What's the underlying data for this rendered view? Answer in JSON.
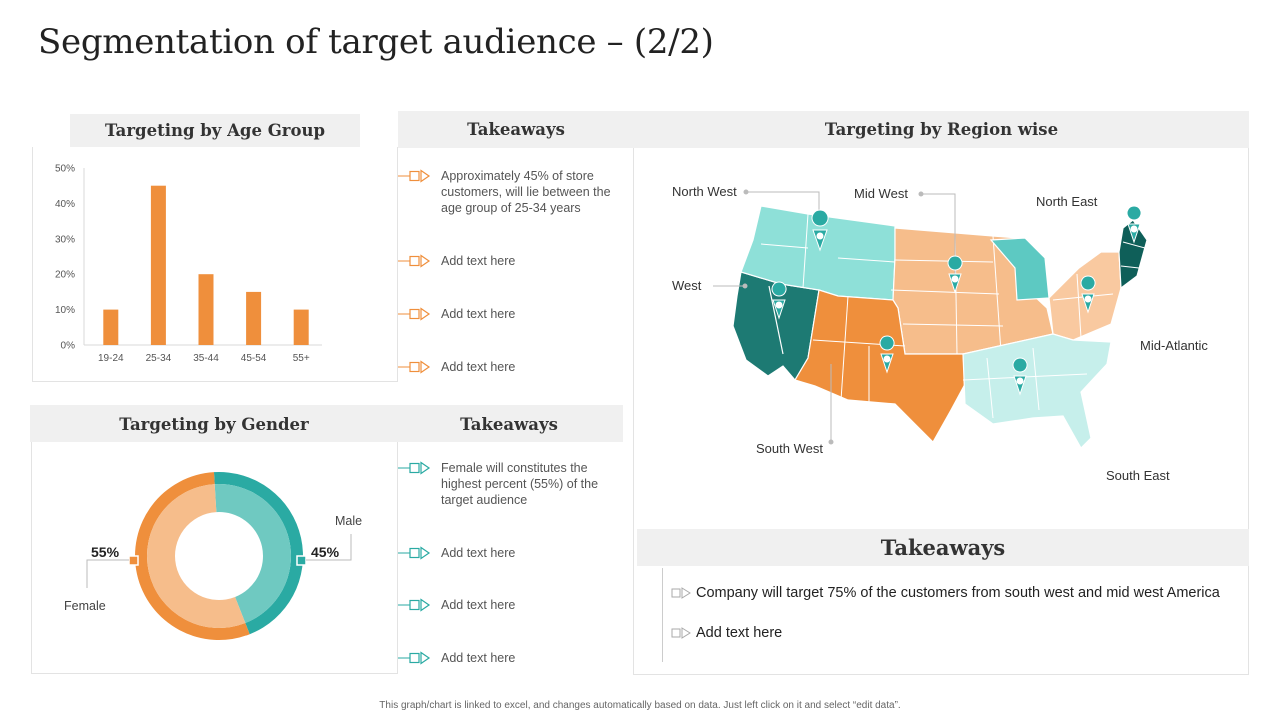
{
  "title": "Segmentation of target audience – (2/2)",
  "colors": {
    "orange": "#ef8f3c",
    "teal": "#2aaaa3",
    "peach": "#f6bd8b",
    "lightteal": "#5dc9c2",
    "darkteal": "#1d7a73",
    "header_bg": "#f0f0f0"
  },
  "age_panel": {
    "header": "Targeting by Age Group"
  },
  "age_takeaways": {
    "header": "Takeaways",
    "items": [
      "Approximately 45% of store customers, will lie between the age group of 25-34 years",
      "Add text here",
      "Add text here",
      "Add text here"
    ]
  },
  "gender_panel": {
    "header": "Targeting by Gender"
  },
  "gender_takeaways": {
    "header": "Takeaways",
    "items": [
      "Female will constitutes the highest percent (55%) of the target audience",
      "Add text here",
      "Add text here",
      "Add text here"
    ]
  },
  "region_panel": {
    "header": "Targeting by Region wise",
    "labels": [
      "North West",
      "Mid West",
      "North East",
      "West",
      "Mid-Atlantic",
      "South West",
      "South East"
    ]
  },
  "region_takeaways": {
    "header": "Takeaways",
    "items": [
      "Company will target 75% of the customers from south west and mid west America",
      "Add text here"
    ]
  },
  "footer": "This graph/chart is linked to excel, and changes automatically based on data. Just left click on it and select “edit data”.",
  "chart_data": [
    {
      "type": "bar",
      "title": "Targeting by Age Group",
      "categories": [
        "19-24",
        "25-34",
        "35-44",
        "45-54",
        "55+"
      ],
      "values": [
        10,
        45,
        20,
        15,
        10
      ],
      "yticks": [
        "0%",
        "10%",
        "20%",
        "30%",
        "40%",
        "50%"
      ],
      "ylim": [
        0,
        50
      ],
      "xlabel": "",
      "ylabel": ""
    },
    {
      "type": "pie",
      "title": "Targeting by Gender",
      "categories": [
        "Female",
        "Male"
      ],
      "values": [
        55,
        45
      ],
      "value_labels": [
        "55%",
        "45%"
      ]
    }
  ]
}
